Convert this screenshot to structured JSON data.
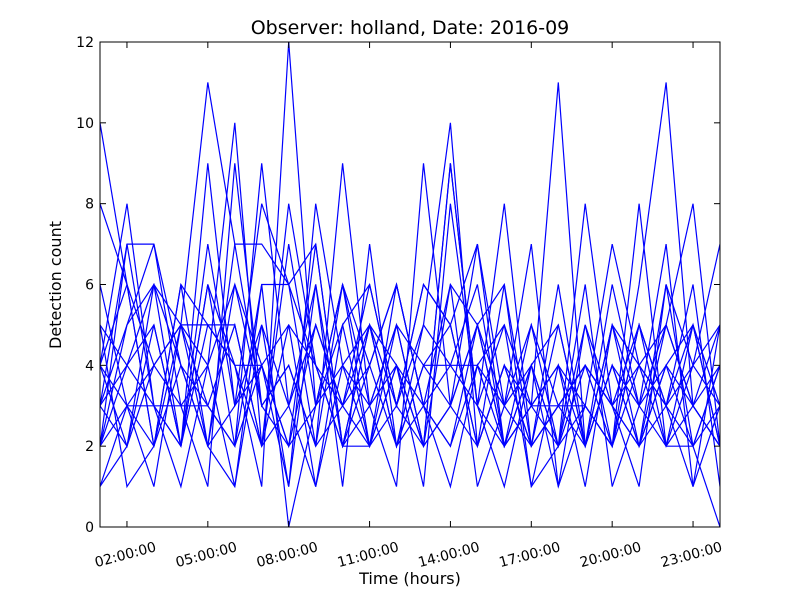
{
  "chart_data": {
    "type": "line",
    "title": "Observer: holland, Date: 2016-09",
    "xlabel": "Time (hours)",
    "ylabel": "Detection count",
    "x": [
      "01:00:00",
      "02:00:00",
      "03:00:00",
      "04:00:00",
      "05:00:00",
      "06:00:00",
      "07:00:00",
      "08:00:00",
      "09:00:00",
      "10:00:00",
      "11:00:00",
      "12:00:00",
      "13:00:00",
      "14:00:00",
      "15:00:00",
      "16:00:00",
      "17:00:00",
      "18:00:00",
      "19:00:00",
      "20:00:00",
      "21:00:00",
      "22:00:00",
      "23:00:00",
      "24:00:00"
    ],
    "xticks": [
      {
        "label": "02:00:00",
        "index": 1
      },
      {
        "label": "05:00:00",
        "index": 4
      },
      {
        "label": "08:00:00",
        "index": 7
      },
      {
        "label": "11:00:00",
        "index": 10
      },
      {
        "label": "14:00:00",
        "index": 13
      },
      {
        "label": "17:00:00",
        "index": 16
      },
      {
        "label": "20:00:00",
        "index": 19
      },
      {
        "label": "23:00:00",
        "index": 22
      }
    ],
    "ylim": [
      0,
      12
    ],
    "yticks": [
      0,
      2,
      4,
      6,
      8,
      10,
      12
    ],
    "grid": false,
    "series_color": "#0000ff",
    "series": [
      {
        "values": [
          10,
          6,
          2,
          5,
          4,
          1,
          6,
          0,
          3,
          6,
          2,
          4,
          3,
          1,
          4,
          2,
          4,
          1,
          3,
          2,
          5,
          3,
          2,
          0
        ]
      },
      {
        "values": [
          4,
          8,
          3,
          2,
          6,
          2,
          4,
          2,
          7,
          2,
          3,
          5,
          2,
          9,
          3,
          5,
          1,
          2,
          6,
          1,
          3,
          7,
          1,
          3
        ]
      },
      {
        "values": [
          2,
          5,
          7,
          3,
          3,
          5,
          2,
          5,
          1,
          4,
          5,
          2,
          4,
          4,
          6,
          2,
          3,
          4,
          1,
          5,
          2,
          4,
          3,
          5
        ]
      },
      {
        "values": [
          1,
          3,
          4,
          5,
          11,
          7,
          3,
          4,
          2,
          6,
          3,
          1,
          9,
          3,
          2,
          4,
          2,
          3,
          3,
          2,
          8,
          2,
          5,
          2
        ]
      },
      {
        "values": [
          3,
          2,
          6,
          4,
          2,
          3,
          8,
          6,
          4,
          2,
          4,
          6,
          3,
          2,
          5,
          3,
          5,
          2,
          4,
          3,
          1,
          6,
          2,
          4
        ]
      },
      {
        "values": [
          5,
          1,
          2,
          6,
          5,
          4,
          1,
          12,
          3,
          5,
          2,
          3,
          6,
          5,
          2,
          6,
          1,
          4,
          2,
          5,
          4,
          3,
          6,
          1
        ]
      },
      {
        "values": [
          2,
          7,
          3,
          1,
          4,
          10,
          2,
          3,
          6,
          1,
          7,
          2,
          3,
          6,
          1,
          3,
          7,
          1,
          5,
          3,
          2,
          5,
          3,
          2
        ]
      },
      {
        "values": [
          6,
          3,
          1,
          5,
          2,
          6,
          4,
          2,
          5,
          3,
          4,
          2,
          5,
          10,
          2,
          4,
          2,
          3,
          2,
          6,
          3,
          2,
          4,
          3
        ]
      },
      {
        "values": [
          3,
          4,
          5,
          2,
          9,
          3,
          5,
          1,
          8,
          4,
          2,
          5,
          2,
          3,
          7,
          2,
          3,
          11,
          2,
          4,
          2,
          3,
          1,
          5
        ]
      },
      {
        "values": [
          4,
          2,
          4,
          3,
          1,
          9,
          3,
          4,
          2,
          9,
          3,
          4,
          1,
          8,
          3,
          8,
          2,
          3,
          4,
          2,
          6,
          11,
          3,
          2
        ]
      },
      {
        "values": [
          8,
          6,
          2,
          4,
          3,
          2,
          9,
          3,
          1,
          5,
          6,
          3,
          2,
          9,
          3,
          1,
          4,
          2,
          8,
          3,
          2,
          4,
          5,
          3
        ]
      },
      {
        "values": [
          3,
          5,
          6,
          2,
          5,
          4,
          2,
          8,
          4,
          2,
          5,
          2,
          4,
          3,
          5,
          2,
          3,
          4,
          3,
          7,
          4,
          2,
          2,
          4
        ]
      },
      {
        "values": [
          2,
          3,
          2,
          6,
          2,
          1,
          5,
          3,
          5,
          3,
          2,
          6,
          3,
          2,
          4,
          3,
          2,
          6,
          2,
          4,
          3,
          5,
          8,
          2
        ]
      },
      {
        "values": [
          5,
          4,
          3,
          3,
          4,
          6,
          3,
          2,
          3,
          4,
          3,
          5,
          4,
          5,
          2,
          4,
          3,
          2,
          5,
          2,
          4,
          3,
          4,
          7
        ]
      },
      {
        "values": [
          4,
          6,
          4,
          5,
          3,
          2,
          6,
          6,
          2,
          3,
          6,
          3,
          5,
          4,
          3,
          2,
          5,
          3,
          4,
          3,
          5,
          2,
          3,
          2
        ]
      },
      {
        "values": [
          1,
          2,
          5,
          2,
          7,
          3,
          4,
          1,
          6,
          2,
          2,
          4,
          2,
          6,
          5,
          6,
          2,
          5,
          2,
          5,
          3,
          4,
          2,
          3
        ]
      },
      {
        "values": [
          3,
          7,
          7,
          4,
          2,
          7,
          7,
          6,
          7,
          2,
          5,
          3,
          6,
          5,
          7,
          3,
          4,
          2,
          3,
          2,
          5,
          3,
          5,
          2
        ]
      },
      {
        "values": [
          2,
          4,
          6,
          5,
          5,
          5,
          2,
          7,
          3,
          6,
          4,
          6,
          3,
          4,
          4,
          5,
          3,
          3,
          4,
          3,
          4,
          5,
          3,
          4
        ]
      },
      {
        "values": [
          4,
          3,
          3,
          2,
          6,
          4,
          4,
          5,
          4,
          3,
          5,
          4,
          2,
          3,
          5,
          2,
          4,
          5,
          2,
          4,
          2,
          6,
          4,
          5
        ]
      }
    ]
  }
}
